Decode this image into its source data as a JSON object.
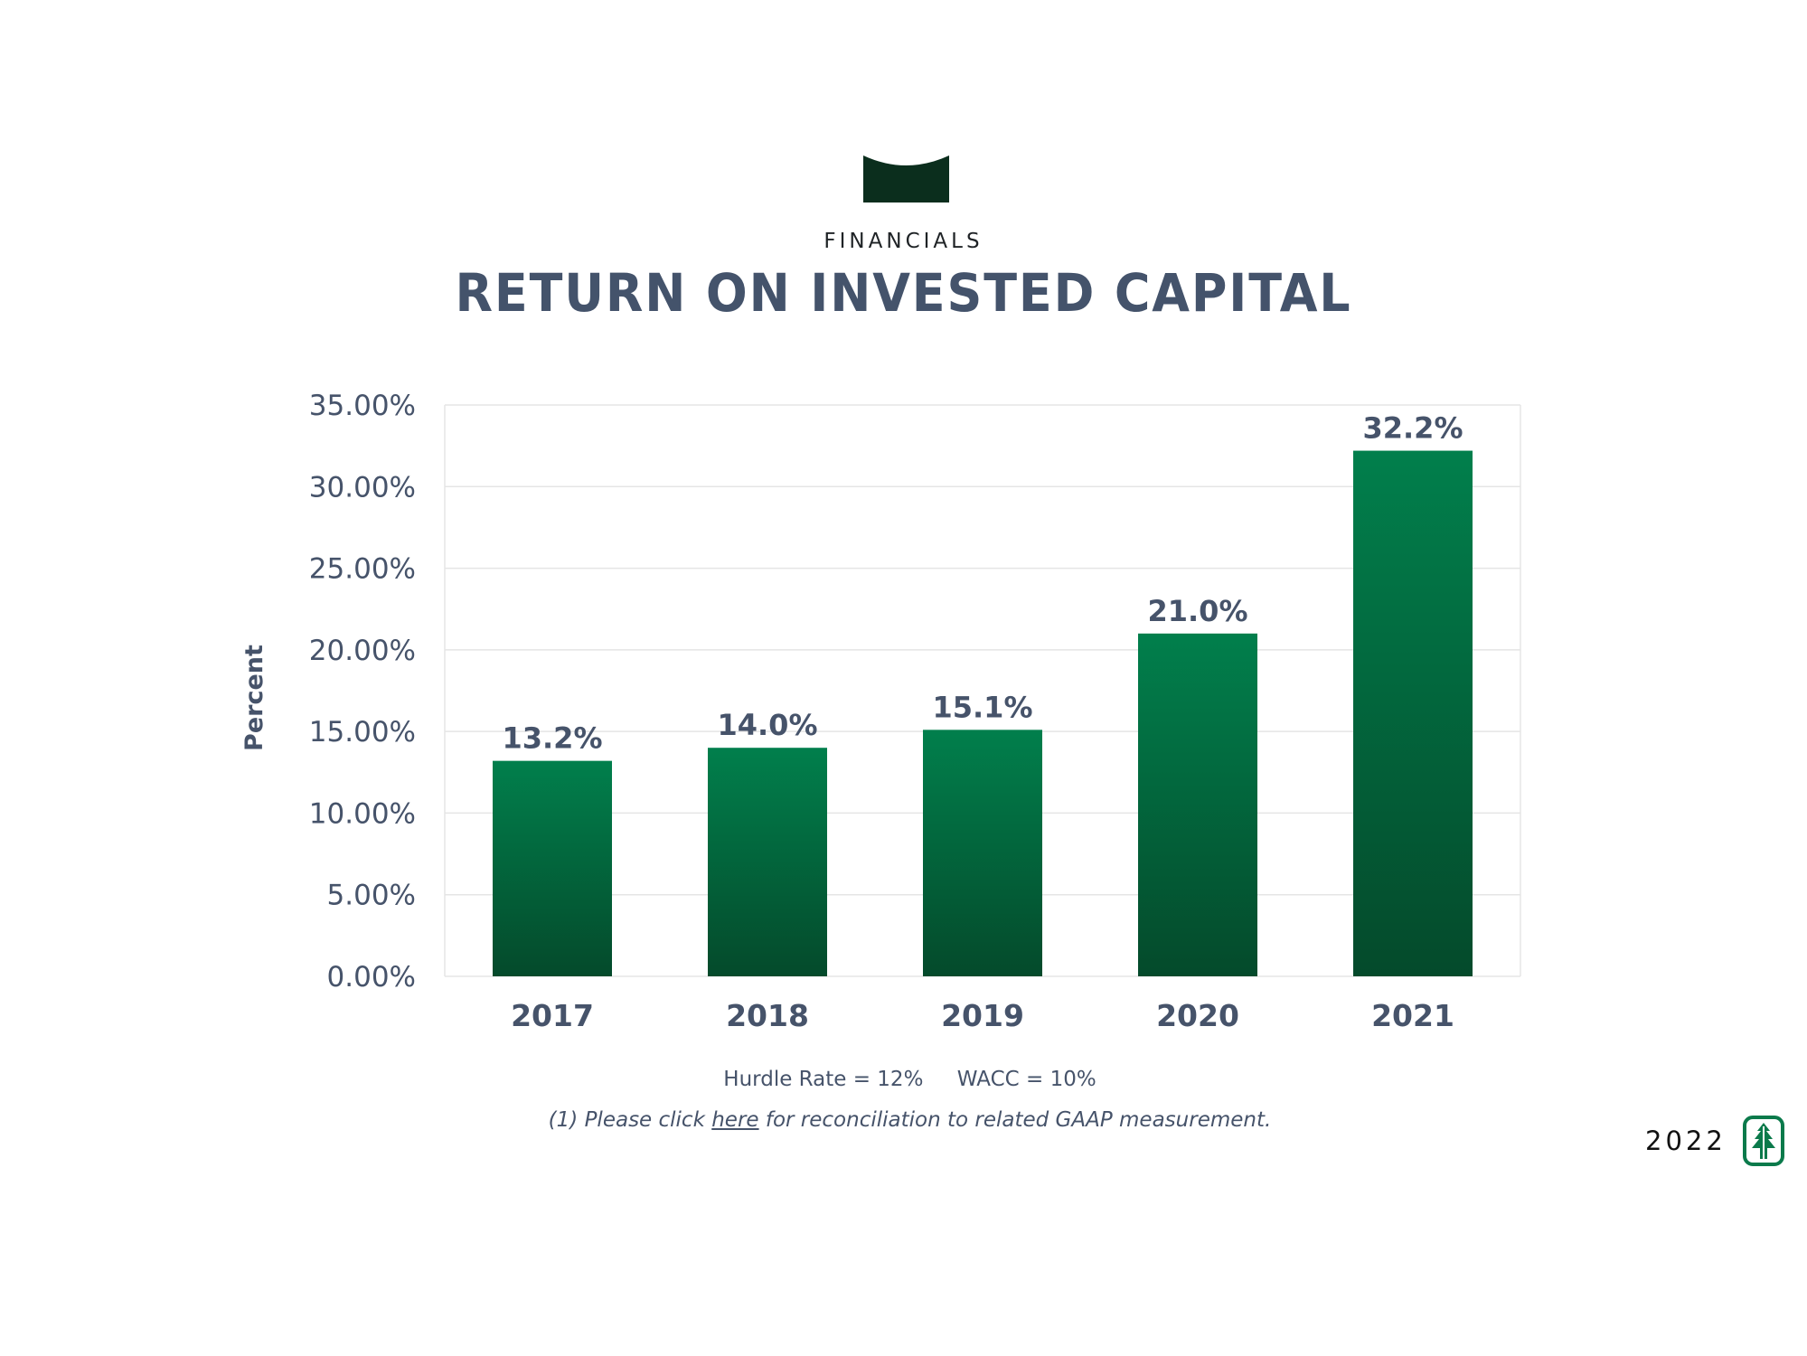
{
  "header": {
    "eyebrow": "FINANCIALS",
    "title": "RETURN ON INVESTED CAPITAL"
  },
  "chart_data": {
    "type": "bar",
    "title": "",
    "xlabel": "",
    "ylabel": "Percent",
    "categories": [
      "2017",
      "2018",
      "2019",
      "2020",
      "2021"
    ],
    "values": [
      13.2,
      14.0,
      15.1,
      21.0,
      32.2
    ],
    "data_labels": [
      "13.2%",
      "14.0%",
      "15.1%",
      "21.0%",
      "32.2%"
    ],
    "ylim": [
      0,
      35
    ],
    "yticks": [
      0,
      5,
      10,
      15,
      20,
      25,
      30,
      35
    ],
    "ytick_labels": [
      "0.00%",
      "5.00%",
      "10.00%",
      "15.00%",
      "20.00%",
      "25.00%",
      "30.00%",
      "35.00%"
    ],
    "grid": true,
    "legend": "none",
    "colors": {
      "bar_top": "#017f4c",
      "bar_bottom": "#044a2b",
      "grid": "#e5e5e5",
      "text": "#46536a"
    }
  },
  "footnotes": {
    "hurdle_rate": "Hurdle Rate = 12%",
    "wacc": "WACC = 10%",
    "recon_prefix": "(1) Please click ",
    "recon_link": "here",
    "recon_suffix": " for reconciliation to related GAAP measurement."
  },
  "brand": {
    "year": "2022",
    "logo_icon": "tree-logo-icon",
    "colors": {
      "dark_green": "#0b2e1d",
      "logo_green": "#0b7a4b"
    }
  }
}
